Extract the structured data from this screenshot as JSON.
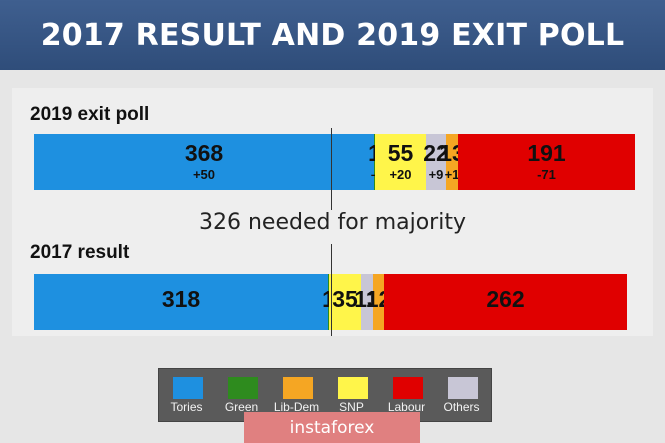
{
  "header": {
    "title": "2017 RESULT AND 2019 EXIT POLL"
  },
  "majority": {
    "text": "326 needed for majority",
    "seats": 326
  },
  "chart_data": [
    {
      "type": "bar",
      "stacked": true,
      "orientation": "horizontal",
      "title": "2019 exit poll",
      "total_seats": 650,
      "segments": [
        {
          "party": "Tories",
          "value": 368,
          "label": "368",
          "change": "+50",
          "color": "#1e90e0",
          "color_key": "Tories"
        },
        {
          "party": "Green",
          "value": 1,
          "label": "1",
          "change": "–",
          "color": "#2e8b1e",
          "color_key": "Green"
        },
        {
          "party": "SNP",
          "value": 55,
          "label": "55",
          "change": "+20",
          "color": "#fff54a",
          "color_key": "SNP"
        },
        {
          "party": "Others",
          "value": 22,
          "label": "22",
          "change": "+9",
          "color": "#c8c6d6",
          "color_key": "Others"
        },
        {
          "party": "Lib-Dem",
          "value": 13,
          "label": "13",
          "change": "+1",
          "color": "#f5a623",
          "color_key": "Lib-Dem"
        },
        {
          "party": "Labour",
          "value": 191,
          "label": "191",
          "change": "-71",
          "color": "#e00000",
          "color_key": "Labour"
        }
      ]
    },
    {
      "type": "bar",
      "stacked": true,
      "orientation": "horizontal",
      "title": "2017 result",
      "total_seats": 650,
      "segments": [
        {
          "party": "Tories",
          "value": 318,
          "label": "318",
          "change": "",
          "color": "#1e90e0",
          "color_key": "Tories"
        },
        {
          "party": "Green",
          "value": 1,
          "label": "1",
          "change": "",
          "color": "#2e8b1e",
          "color_key": "Green"
        },
        {
          "party": "SNP",
          "value": 35,
          "label": "35",
          "change": "",
          "color": "#fff54a",
          "color_key": "SNP"
        },
        {
          "party": "Others",
          "value": 13,
          "label": "13",
          "change": "",
          "color": "#c8c6d6",
          "color_key": "Others"
        },
        {
          "party": "Lib-Dem",
          "value": 12,
          "label": "12",
          "change": "",
          "color": "#f5a623",
          "color_key": "Lib-Dem"
        },
        {
          "party": "Labour",
          "value": 262,
          "label": "262",
          "change": "",
          "color": "#e00000",
          "color_key": "Labour"
        }
      ]
    }
  ],
  "legend": {
    "items": [
      {
        "label": "Tories",
        "color": "#1e90e0"
      },
      {
        "label": "Green",
        "color": "#2e8b1e"
      },
      {
        "label": "Lib-Dem",
        "color": "#f5a623"
      },
      {
        "label": "SNP",
        "color": "#fff54a"
      },
      {
        "label": "Labour",
        "color": "#e00000"
      },
      {
        "label": "Others",
        "color": "#c8c6d6"
      }
    ]
  },
  "watermark": {
    "text": "instaforex"
  }
}
